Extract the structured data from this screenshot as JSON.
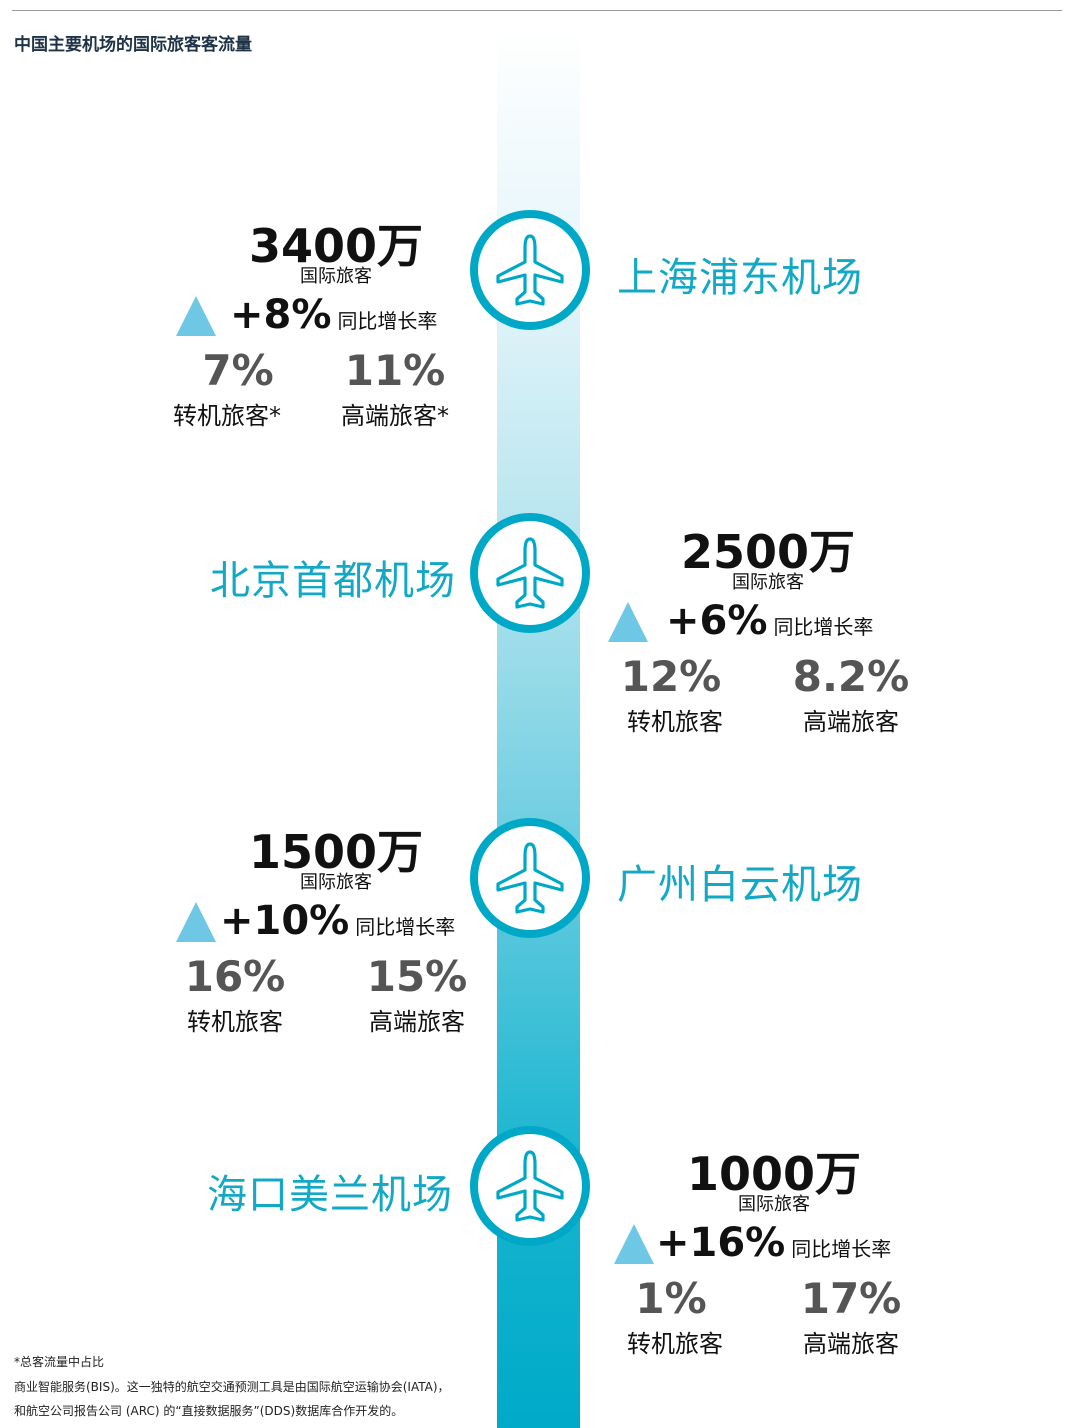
{
  "title": "中国主要机场的国际旅客客流量",
  "labels": {
    "intl": "国际旅客",
    "yoy": "同比增长率"
  },
  "airports": [
    {
      "name": "上海浦东机场",
      "passengers": "3400万",
      "growth": "+8%",
      "transfer_pct": "7%",
      "transfer_label": "转机旅客*",
      "premium_pct": "11%",
      "premium_label": "高端旅客*"
    },
    {
      "name": "北京首都机场",
      "passengers": "2500万",
      "growth": "+6%",
      "transfer_pct": "12%",
      "transfer_label": "转机旅客",
      "premium_pct": "8.2%",
      "premium_label": "高端旅客"
    },
    {
      "name": "广州白云机场",
      "passengers": "1500万",
      "growth": "+10%",
      "transfer_pct": "16%",
      "transfer_label": "转机旅客",
      "premium_pct": "15%",
      "premium_label": "高端旅客"
    },
    {
      "name": "海口美兰机场",
      "passengers": "1000万",
      "growth": "+16%",
      "transfer_pct": "1%",
      "transfer_label": "转机旅客",
      "premium_pct": "17%",
      "premium_label": "高端旅客"
    }
  ],
  "footnotes": [
    "*总客流量中占比",
    "商业智能服务(BIS)。这一独特的航空交通预测工具是由国际航空运输协会(IATA)，",
    "和航空公司报告公司 (ARC) 的“直接数据服务”(DDS)数据库合作开发的。"
  ],
  "colors": {
    "accent": "#00a8c8",
    "triangle": "#6fc7e6",
    "stat_gray": "#555555",
    "title_navy": "#1f3347"
  },
  "icon": "airplane-icon"
}
